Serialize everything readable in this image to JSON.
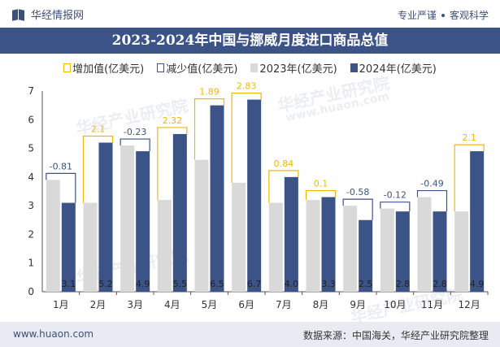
{
  "header": {
    "brand": "华经情报网",
    "slogan_left": "专业严谨",
    "slogan_right": "客观科学"
  },
  "title": "2023-2024年中国与挪威月度进口商品总值",
  "legend": {
    "increase": "增加值(亿美元)",
    "decrease": "减少值(亿美元)",
    "y2023": "2023年(亿美元)",
    "y2024": "2024年(亿美元)"
  },
  "colors": {
    "bar2023": "#d9d9d9",
    "bar2024": "#3b5387",
    "increase": "#f2b705",
    "decrease": "#3b5387",
    "banner": "#3b5387"
  },
  "chart_data": {
    "type": "bar",
    "title": "2023-2024年中国与挪威月度进口商品总值",
    "categories": [
      "1月",
      "2月",
      "3月",
      "4月",
      "5月",
      "6月",
      "7月",
      "8月",
      "9月",
      "10月",
      "11月",
      "12月"
    ],
    "series": [
      {
        "name": "2023年(亿美元)",
        "values": [
          3.9,
          3.1,
          5.1,
          3.2,
          4.6,
          3.8,
          3.1,
          3.2,
          3.0,
          2.9,
          3.3,
          2.8
        ]
      },
      {
        "name": "2024年(亿美元)",
        "values": [
          3.1,
          5.2,
          4.9,
          5.5,
          6.5,
          6.7,
          4.0,
          3.3,
          2.5,
          2.8,
          2.8,
          4.9
        ]
      }
    ],
    "bar_labels_2024": [
      "3.1",
      "5.2",
      "4.9",
      "5.5",
      "6.5",
      "6.7",
      "4.0",
      "3.3",
      "2.5",
      "2.8",
      "2.8",
      "4.9"
    ],
    "change_labels": [
      "-0.81",
      "2.1",
      "-0.23",
      "2.32",
      "1.89",
      "2.83",
      "0.84",
      "0.1",
      "-0.58",
      "-0.12",
      "-0.49",
      "2.1"
    ],
    "ylim": [
      0,
      7
    ],
    "yticks": [
      "0",
      "1",
      "2",
      "3",
      "4",
      "5",
      "6",
      "7"
    ],
    "xlabel": "",
    "ylabel": ""
  },
  "watermark": "华经产业研究院",
  "watermark_url": "www.huaon.com",
  "footer": {
    "site": "www.huaon.com",
    "source": "数据来源：中国海关，华经产业研究院整理"
  }
}
